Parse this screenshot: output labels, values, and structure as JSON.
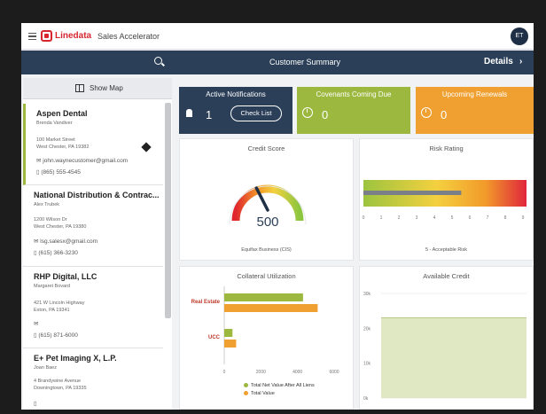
{
  "app": {
    "logo_text": "Linedata",
    "name": "Sales Accelerator",
    "user_initials": "ET"
  },
  "nav": {
    "title": "Customer Summary",
    "details_label": "Details",
    "details_chevron": "›"
  },
  "sidebar": {
    "show_map_label": "Show Map",
    "customers": [
      {
        "name": "Aspen Dental",
        "person": "Brenda Vandiver",
        "address1": "100 Market Street",
        "address2": "West Chester, PA 19382",
        "email": "john.waynecustomer@gmail.com",
        "phone": "(865) 555-4545"
      },
      {
        "name": "National Distribution & Contrac...",
        "person": "Alex Trubek",
        "address1": "1200 Wilson Dr",
        "address2": "West Chester, PA 19380",
        "email": "lsg.salesx@gmail.com",
        "phone": "(615) 366-3230"
      },
      {
        "name": "RHP Digital, LLC",
        "person": "Margaret Bovard",
        "address1": "421 W Lincoln Highway",
        "address2": "Exton, PA 19341",
        "email": "",
        "phone": "(615) 871-6000"
      },
      {
        "name": "E+ Pet Imaging X, L.P.",
        "person": "Joan Baez",
        "address1": "4 Brandywine Avenue",
        "address2": "Downingtown, PA 19335",
        "email": "",
        "phone": ""
      }
    ]
  },
  "tiles": {
    "notifications": {
      "title": "Active Notifications",
      "value": "1",
      "button": "Check List",
      "color": "#2b3f58"
    },
    "covenants": {
      "title": "Covenants Coming Due",
      "value": "0",
      "color": "#9cb83f"
    },
    "renewals": {
      "title": "Upcoming Renewals",
      "value": "0",
      "color": "#f0a030"
    }
  },
  "credit_score": {
    "title": "Credit Score",
    "value": "500",
    "footer": "Equifax Business (CIS)",
    "gauge_fraction": 0.4
  },
  "risk_rating": {
    "title": "Risk Rating",
    "footer": "5 - Acceptable Risk",
    "ticks": [
      "0",
      "1",
      "2",
      "3",
      "4",
      "5",
      "6",
      "7",
      "8",
      "9"
    ],
    "fill_fraction": 0.6
  },
  "collateral": {
    "title": "Collateral Utilization",
    "chart_data": {
      "type": "bar",
      "orientation": "horizontal",
      "categories": [
        "Real Estate",
        "UCC"
      ],
      "series": [
        {
          "name": "Total Net Value After All Liens",
          "color": "#9cb83f",
          "values": [
            4300,
            450
          ]
        },
        {
          "name": "Total Value",
          "color": "#f0a030",
          "values": [
            5100,
            650
          ]
        }
      ],
      "xticks": [
        "0",
        "2000",
        "4000",
        "6000"
      ],
      "xlim": [
        0,
        6000
      ]
    }
  },
  "available_credit": {
    "title": "Available Credit",
    "chart_data": {
      "type": "area",
      "yticks": [
        "30k",
        "20k",
        "10k",
        "0k"
      ],
      "ylim": [
        0,
        30000
      ],
      "values": [
        23000,
        23000
      ],
      "color": "#dfe8c3"
    }
  }
}
